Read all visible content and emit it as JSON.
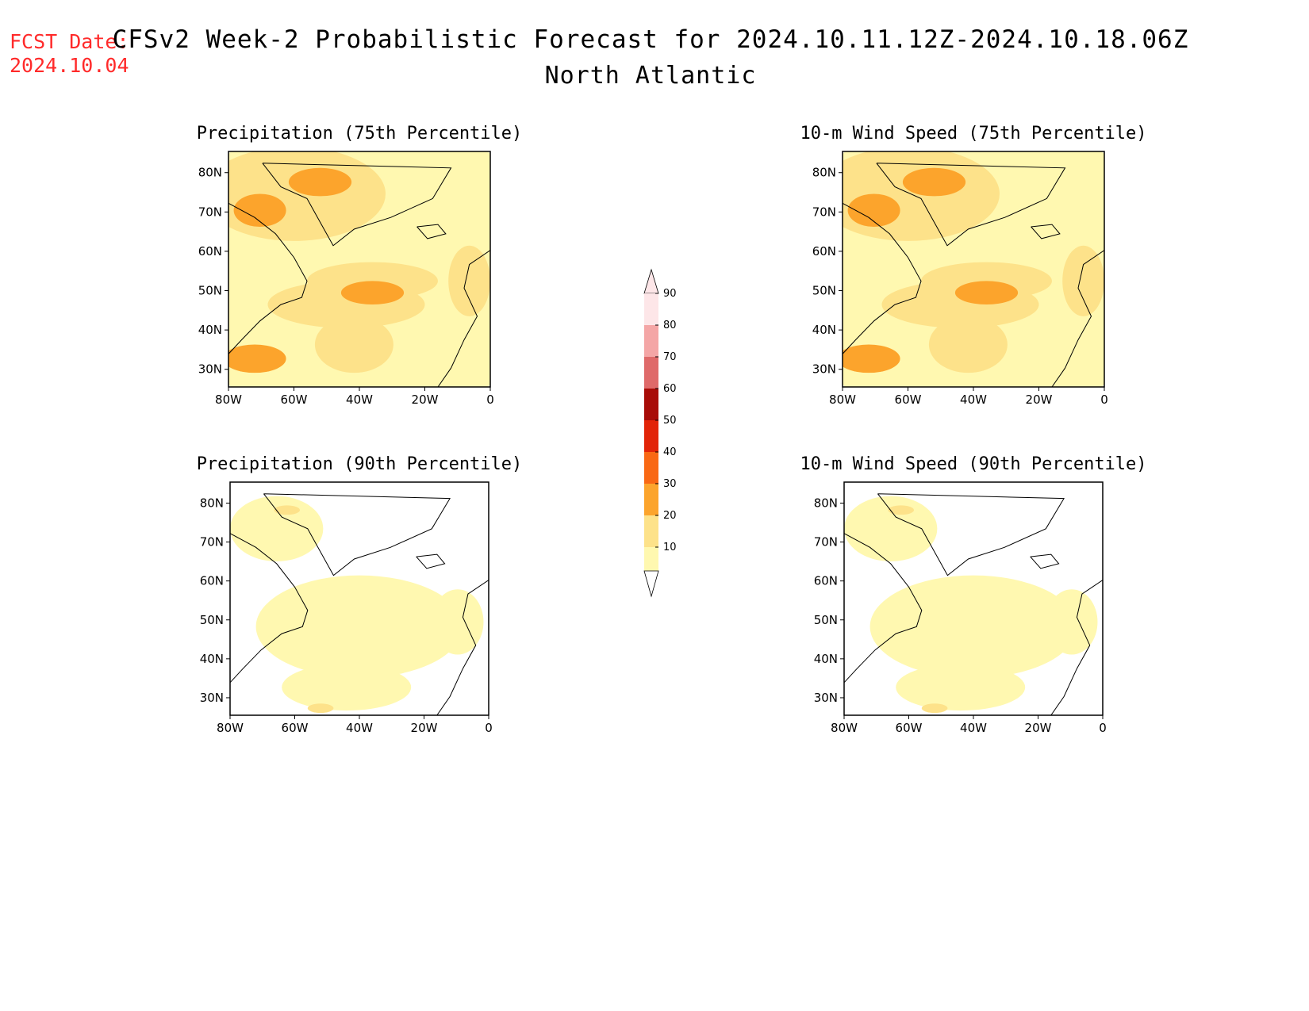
{
  "fcst_date": {
    "label": "FCST Date:",
    "value": "2024.10.04"
  },
  "title": "CFSv2 Week-2 Probabilistic Forecast for 2024.10.11.12Z-2024.10.18.06Z",
  "subtitle": "North Atlantic",
  "panels": [
    {
      "title": "Precipitation (75th Percentile)",
      "intensity": "high"
    },
    {
      "title": "10-m Wind Speed (75th Percentile)",
      "intensity": "high"
    },
    {
      "title": "Precipitation (90th Percentile)",
      "intensity": "low"
    },
    {
      "title": "10-m Wind Speed (90th Percentile)",
      "intensity": "low"
    }
  ],
  "axes": {
    "lat_labels": [
      "80N",
      "70N",
      "60N",
      "50N",
      "40N",
      "30N"
    ],
    "lon_labels": [
      "80W",
      "60W",
      "40W",
      "20W",
      "0"
    ]
  },
  "colorbar": {
    "labels": [
      "10",
      "20",
      "30",
      "40",
      "50",
      "60",
      "70",
      "80",
      "90"
    ],
    "colors": [
      "#fff8b0",
      "#fde28a",
      "#fca42c",
      "#f96814",
      "#e22408",
      "#a80c08",
      "#df6a6a",
      "#f4a6a6",
      "#fde6e8"
    ]
  }
}
